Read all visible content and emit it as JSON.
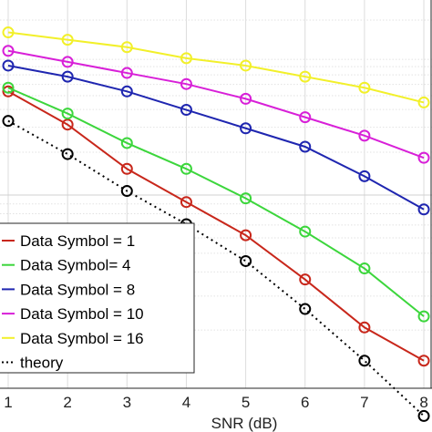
{
  "chart_data": {
    "type": "line",
    "title": "",
    "xlabel": "SNR (dB)",
    "ylabel": "",
    "x": [
      1,
      2,
      3,
      4,
      5,
      6,
      7,
      8
    ],
    "x_tick_labels": [
      "1",
      "2",
      "3",
      "4",
      "5",
      "6",
      "7",
      "8"
    ],
    "xlim": [
      1,
      8
    ],
    "ylim": [
      0,
      1
    ],
    "y_scale": "log",
    "grid": true,
    "legend_position": "bottom-left",
    "series": [
      {
        "name": "Data Symbol = 1",
        "color": "#c8271b",
        "line_style": "solid",
        "marker": "circle",
        "values": [
          0.79,
          0.7,
          0.58,
          0.49,
          0.4,
          0.28,
          0.15,
          0.06
        ]
      },
      {
        "name": "Data Symbol= 4",
        "color": "#3cd63c",
        "line_style": "solid",
        "marker": "circle",
        "values": [
          0.8,
          0.73,
          0.65,
          0.58,
          0.5,
          0.41,
          0.31,
          0.18
        ]
      },
      {
        "name": "Data Symbol = 8",
        "color": "#1f26b0",
        "line_style": "solid",
        "marker": "circle",
        "values": [
          0.86,
          0.83,
          0.79,
          0.74,
          0.69,
          0.64,
          0.56,
          0.47
        ]
      },
      {
        "name": "Data Symbol = 10",
        "color": "#d820d8",
        "line_style": "solid",
        "marker": "circle",
        "values": [
          0.9,
          0.87,
          0.84,
          0.81,
          0.77,
          0.72,
          0.67,
          0.61
        ]
      },
      {
        "name": "Data Symbol = 16",
        "color": "#f2f02a",
        "line_style": "solid",
        "marker": "circle",
        "values": [
          0.95,
          0.93,
          0.91,
          0.88,
          0.86,
          0.83,
          0.8,
          0.76
        ]
      },
      {
        "name": "theory",
        "color": "#000000",
        "line_style": "dotted",
        "marker": "circle",
        "values": [
          0.71,
          0.62,
          0.52,
          0.43,
          0.33,
          0.2,
          0.06,
          -0.09
        ]
      }
    ]
  }
}
